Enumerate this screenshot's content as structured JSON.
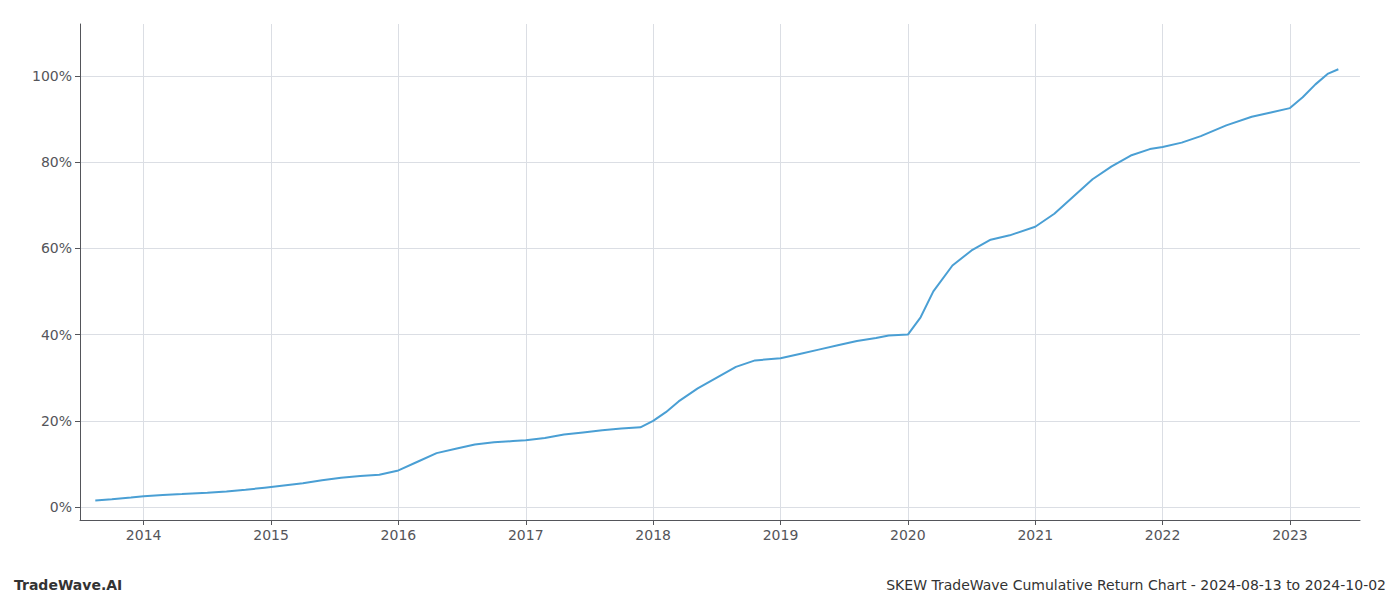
{
  "chart_data": {
    "type": "line",
    "annotations": [
      "TradeWave.AI",
      "SKEW TradeWave Cumulative Return Chart - 2024-08-13 to 2024-10-02"
    ],
    "x": [
      2013.62,
      2013.75,
      2013.9,
      2014.0,
      2014.15,
      2014.3,
      2014.5,
      2014.65,
      2014.8,
      2014.95,
      2015.1,
      2015.25,
      2015.4,
      2015.55,
      2015.7,
      2015.85,
      2016.0,
      2016.15,
      2016.3,
      2016.45,
      2016.6,
      2016.75,
      2016.9,
      2017.0,
      2017.15,
      2017.3,
      2017.45,
      2017.6,
      2017.75,
      2017.9,
      2018.0,
      2018.1,
      2018.2,
      2018.35,
      2018.5,
      2018.65,
      2018.8,
      2019.0,
      2019.15,
      2019.3,
      2019.45,
      2019.6,
      2019.75,
      2019.85,
      2020.0,
      2020.1,
      2020.2,
      2020.35,
      2020.5,
      2020.65,
      2020.8,
      2021.0,
      2021.15,
      2021.3,
      2021.45,
      2021.6,
      2021.75,
      2021.9,
      2022.0,
      2022.15,
      2022.3,
      2022.5,
      2022.7,
      2022.85,
      2023.0,
      2023.1,
      2023.2,
      2023.3,
      2023.38
    ],
    "values": [
      1.5,
      1.8,
      2.2,
      2.5,
      2.8,
      3.0,
      3.3,
      3.6,
      4.0,
      4.5,
      5.0,
      5.5,
      6.2,
      6.8,
      7.2,
      7.5,
      8.5,
      10.5,
      12.5,
      13.5,
      14.5,
      15.0,
      15.3,
      15.5,
      16.0,
      16.8,
      17.3,
      17.8,
      18.2,
      18.5,
      20.0,
      22.0,
      24.5,
      27.5,
      30.0,
      32.5,
      34.0,
      34.5,
      35.5,
      36.5,
      37.5,
      38.5,
      39.2,
      39.8,
      40.0,
      44.0,
      50.0,
      56.0,
      59.5,
      62.0,
      63.0,
      65.0,
      68.0,
      72.0,
      76.0,
      79.0,
      81.5,
      83.0,
      83.5,
      84.5,
      86.0,
      88.5,
      90.5,
      91.5,
      92.5,
      95.0,
      98.0,
      100.5,
      101.5
    ],
    "color": "#4a9fd4",
    "xlim": [
      2013.5,
      2023.55
    ],
    "xticks": [
      2014,
      2015,
      2016,
      2017,
      2018,
      2019,
      2020,
      2021,
      2022,
      2023
    ],
    "ylim": [
      -3,
      112
    ],
    "yticks": [
      {
        "value": 0,
        "label": "0%"
      },
      {
        "value": 20,
        "label": "20%"
      },
      {
        "value": 40,
        "label": "40%"
      },
      {
        "value": 60,
        "label": "60%"
      },
      {
        "value": 80,
        "label": "80%"
      },
      {
        "value": 100,
        "label": "100%"
      }
    ],
    "grid": true
  }
}
